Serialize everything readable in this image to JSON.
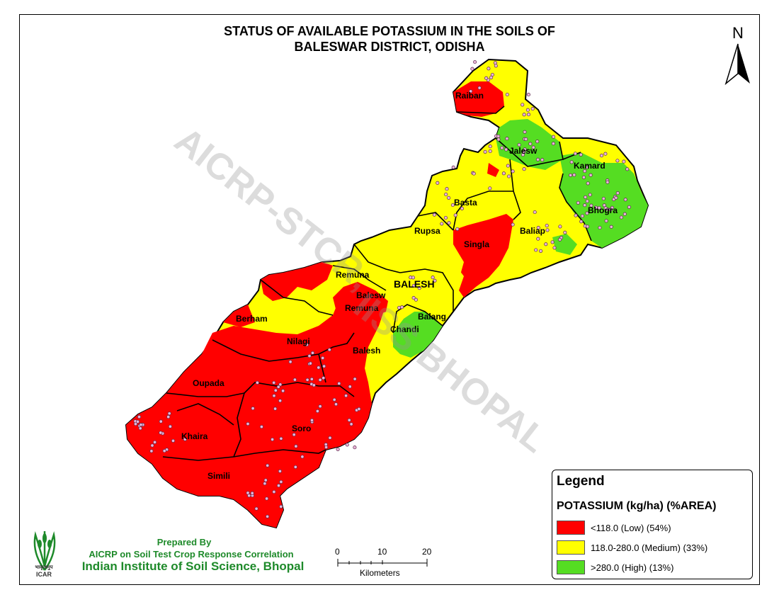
{
  "title": {
    "line1": "STATUS OF AVAILABLE POTASSIUM IN THE SOILS OF",
    "line2": "BALESWAR DISTRICT, ODISHA"
  },
  "north_arrow": {
    "label": "N",
    "icon": "north-arrow-icon"
  },
  "watermark": {
    "line1": "AICRP-STCR,",
    "line2": "IISS BHOPAL"
  },
  "legend": {
    "heading": "Legend",
    "subheading": "POTASSIUM (kg/ha) (%AREA)",
    "items": [
      {
        "label": "<118.0 (Low) (54%)",
        "color": "#ff0000",
        "share_percent": 54
      },
      {
        "label": "118.0-280.0 (Medium) (33%)",
        "color": "#ffff00",
        "share_percent": 33
      },
      {
        "label": ">280.0 (High) (13%)",
        "color": "#55dd22",
        "share_percent": 13
      }
    ]
  },
  "scale_bar": {
    "ticks": [
      "0",
      "10",
      "20"
    ],
    "unit": "Kilometers"
  },
  "credits": {
    "prepared_by": "Prepared By",
    "project": "AICRP on Soil Test Crop Response Correlation",
    "institute": "Indian Institute of Soil Science, Bhopal",
    "logo_text_top": "भाकृअनुप",
    "logo_text": "ICAR"
  },
  "regions": [
    {
      "name": "Raiban",
      "class": "Low"
    },
    {
      "name": "Jalesw",
      "class": "High"
    },
    {
      "name": "Kamard",
      "class": "High"
    },
    {
      "name": "Bhogra",
      "class": "High"
    },
    {
      "name": "Basta",
      "class": "Medium"
    },
    {
      "name": "Rupsa",
      "class": "Medium"
    },
    {
      "name": "Baliap",
      "class": "Medium"
    },
    {
      "name": "Singla",
      "class": "Low"
    },
    {
      "name": "Remuna",
      "class": "Medium"
    },
    {
      "name": "BALESH",
      "class": "Medium"
    },
    {
      "name": "Balesw",
      "class": "Low"
    },
    {
      "name": "Remuna",
      "class": "Low"
    },
    {
      "name": "Balang",
      "class": "High"
    },
    {
      "name": "Chandi",
      "class": "High"
    },
    {
      "name": "Berham",
      "class": "Medium"
    },
    {
      "name": "Nilagi",
      "class": "Low"
    },
    {
      "name": "Balesh",
      "class": "Low"
    },
    {
      "name": "Oupada",
      "class": "Low"
    },
    {
      "name": "Soro",
      "class": "Low"
    },
    {
      "name": "Khaira",
      "class": "Low"
    },
    {
      "name": "Simili",
      "class": "Low"
    }
  ]
}
